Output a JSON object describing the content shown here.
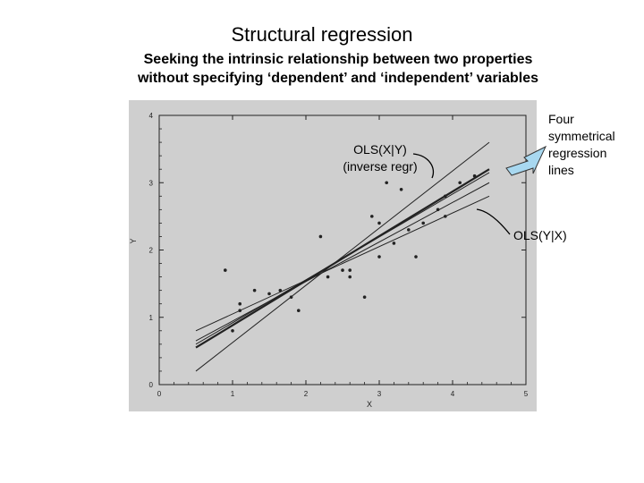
{
  "slide": {
    "title": "Structural regression",
    "subtitle_line1": "Seeking the intrinsic relationship between two properties",
    "subtitle_line2": "without specifying ‘dependent’ and ‘independent’ variables"
  },
  "annotations": {
    "ols_xy_line1": "OLS(X|Y)",
    "ols_xy_line2": "(inverse regr)",
    "four_line1": "Four",
    "four_line2": "symmetrical",
    "four_line3": "regression",
    "four_line4": "lines",
    "ols_yx": "OLS(Y|X)"
  },
  "chart_data": {
    "type": "scatter",
    "xlabel": "X",
    "ylabel": "Y",
    "xlim": [
      0,
      5
    ],
    "ylim": [
      0,
      4
    ],
    "xticks": [
      "0",
      "1",
      "2",
      "3",
      "4",
      "5"
    ],
    "yticks": [
      "0",
      "1",
      "2",
      "3",
      "4"
    ],
    "grid": false,
    "points": [
      {
        "x": 0.9,
        "y": 1.7
      },
      {
        "x": 1.1,
        "y": 1.2
      },
      {
        "x": 1.1,
        "y": 1.1
      },
      {
        "x": 1.3,
        "y": 1.4
      },
      {
        "x": 1.5,
        "y": 1.35
      },
      {
        "x": 1.65,
        "y": 1.4
      },
      {
        "x": 1.8,
        "y": 1.3
      },
      {
        "x": 1.9,
        "y": 1.1
      },
      {
        "x": 1.0,
        "y": 0.8
      },
      {
        "x": 2.2,
        "y": 2.2
      },
      {
        "x": 2.3,
        "y": 1.6
      },
      {
        "x": 2.5,
        "y": 1.7
      },
      {
        "x": 2.6,
        "y": 1.6
      },
      {
        "x": 2.6,
        "y": 1.7
      },
      {
        "x": 2.8,
        "y": 1.3
      },
      {
        "x": 2.9,
        "y": 2.5
      },
      {
        "x": 3.0,
        "y": 2.4
      },
      {
        "x": 3.0,
        "y": 1.9
      },
      {
        "x": 3.1,
        "y": 3.0
      },
      {
        "x": 3.3,
        "y": 2.9
      },
      {
        "x": 3.2,
        "y": 2.1
      },
      {
        "x": 3.4,
        "y": 2.3
      },
      {
        "x": 3.5,
        "y": 1.9
      },
      {
        "x": 3.6,
        "y": 2.4
      },
      {
        "x": 3.8,
        "y": 2.6
      },
      {
        "x": 3.9,
        "y": 2.5
      },
      {
        "x": 3.9,
        "y": 2.8
      },
      {
        "x": 4.1,
        "y": 3.0
      },
      {
        "x": 4.3,
        "y": 3.1
      }
    ],
    "lines": [
      {
        "label": "OLS(X|Y)",
        "x": [
          0.5,
          4.5
        ],
        "y": [
          0.2,
          3.6
        ]
      },
      {
        "x": [
          0.5,
          4.5
        ],
        "y": [
          0.55,
          3.2
        ]
      },
      {
        "x": [
          0.5,
          4.5
        ],
        "y": [
          0.6,
          3.15
        ]
      },
      {
        "label": "OLS(Y|X)",
        "x": [
          0.5,
          4.5
        ],
        "y": [
          0.8,
          2.8
        ]
      },
      {
        "x": [
          0.5,
          4.5
        ],
        "y": [
          0.65,
          3.0
        ]
      }
    ]
  },
  "colors": {
    "plot_bg": "#cfcfcf",
    "ink": "#222222",
    "arrow_fill": "#a8d8f0",
    "arrow_stroke": "#333333"
  }
}
